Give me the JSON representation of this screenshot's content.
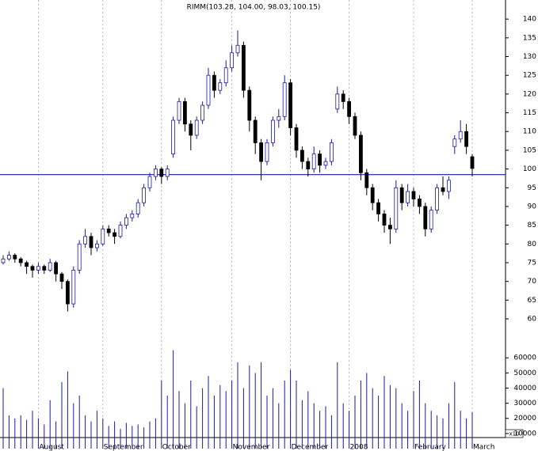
{
  "chart_data": {
    "type": "candlestick",
    "title": "RIMM(103.28, 104.00, 98.03, 100.15)",
    "open": [
      75,
      76,
      77,
      76,
      75,
      74,
      73,
      74,
      73,
      75,
      72,
      70,
      64,
      73,
      80,
      82,
      79,
      80,
      84,
      83,
      82,
      85,
      87,
      88,
      91,
      95,
      98,
      100,
      98,
      104,
      113,
      118,
      112,
      109,
      113,
      117,
      125,
      121,
      123,
      127,
      131,
      133,
      121,
      113,
      107,
      102,
      107,
      113,
      114,
      123,
      111,
      105,
      102,
      100,
      104,
      101,
      102,
      116,
      120,
      118,
      114,
      109,
      99,
      95,
      91,
      88,
      85,
      84,
      95,
      91,
      94,
      92,
      90,
      84,
      89,
      95,
      94,
      106,
      108,
      110,
      103.28
    ],
    "high": [
      77,
      78,
      77.5,
      76.5,
      75.5,
      74.5,
      75,
      74.5,
      76,
      75.5,
      72.5,
      70.5,
      74,
      81,
      84,
      83,
      81,
      85,
      85,
      84,
      86,
      88,
      89,
      92,
      96,
      99,
      101,
      100.5,
      101,
      114,
      119,
      119,
      113,
      114,
      118,
      127,
      126,
      124,
      129,
      133,
      137,
      134,
      122,
      114,
      108,
      108,
      114,
      116,
      125,
      124,
      112,
      106,
      103,
      106,
      105,
      103,
      108,
      122,
      121,
      119,
      115,
      110,
      100,
      96,
      92,
      89,
      87,
      97,
      96,
      96,
      95,
      93,
      91,
      90,
      96,
      98,
      98,
      109,
      113,
      112,
      104
    ],
    "low": [
      74.5,
      75.5,
      75,
      74,
      72,
      71,
      72,
      72,
      72.5,
      70,
      68,
      62,
      63,
      72,
      79,
      77,
      78,
      79.5,
      82,
      80,
      81.5,
      84,
      86,
      87,
      90,
      94,
      97,
      96,
      97,
      103,
      112,
      110,
      105,
      108,
      112,
      116,
      119,
      120,
      122,
      126,
      130,
      119,
      110,
      104,
      97,
      101,
      106,
      111,
      113,
      109,
      103,
      100,
      98,
      99,
      99,
      100,
      101,
      115,
      116,
      112,
      108,
      97,
      93,
      89,
      86,
      83,
      80,
      83,
      89,
      90,
      90,
      88,
      82,
      83,
      88,
      93,
      92,
      104,
      107,
      104,
      98.03
    ],
    "close": [
      76,
      77,
      76,
      75,
      74,
      73,
      74,
      73,
      75,
      72,
      70,
      64,
      73,
      80,
      82,
      79,
      80,
      84,
      83,
      82,
      85,
      87,
      88,
      91,
      95,
      98,
      100,
      98,
      100,
      113,
      118,
      112,
      109,
      113,
      117,
      125,
      121,
      123,
      127,
      131,
      133,
      121,
      113,
      107,
      102,
      107,
      113,
      114,
      123,
      111,
      105,
      102,
      100,
      104,
      101,
      102,
      107,
      120,
      118,
      114,
      109,
      99,
      95,
      91,
      88,
      85,
      84,
      95,
      91,
      94,
      92,
      90,
      84,
      89,
      95,
      94,
      97,
      108,
      110,
      106,
      100.15
    ],
    "volume": [
      40000,
      22000,
      20000,
      22000,
      19000,
      25000,
      20000,
      16000,
      32000,
      18000,
      44000,
      51000,
      30000,
      35000,
      22000,
      18000,
      25000,
      20000,
      15000,
      18000,
      13000,
      17000,
      15000,
      16000,
      14000,
      18000,
      20000,
      45000,
      35000,
      65000,
      38000,
      30000,
      45000,
      28000,
      40000,
      48000,
      35000,
      42000,
      38000,
      45000,
      57000,
      40000,
      55000,
      50000,
      57000,
      35000,
      40000,
      30000,
      45000,
      52000,
      45000,
      32000,
      38000,
      30000,
      25000,
      28000,
      22000,
      57000,
      30000,
      25000,
      35000,
      45000,
      50000,
      40000,
      35000,
      48000,
      42000,
      40000,
      30000,
      25000,
      38000,
      45000,
      30000,
      25000,
      22000,
      20000,
      30000,
      44000,
      25000,
      20000,
      24000
    ],
    "up_color": "#1a1aa6",
    "down_color": "#000000",
    "volume_color": "#1a1aa6",
    "reference_line": 98.5,
    "reference_color": "#1a1aa6",
    "ylim": [
      54.3,
      145.1
    ],
    "yticks": [
      60,
      65,
      70,
      75,
      80,
      85,
      90,
      95,
      100,
      105,
      110,
      115,
      120,
      125,
      130,
      135,
      140
    ],
    "y2lim": [
      0,
      69000
    ],
    "y2ticks": [
      10000,
      20000,
      30000,
      40000,
      50000,
      60000
    ],
    "xticks": [
      {
        "value": 6,
        "label": "August"
      },
      {
        "value": 17,
        "label": "September"
      },
      {
        "value": 27,
        "label": "October"
      },
      {
        "value": 39,
        "label": "November"
      },
      {
        "value": 49,
        "label": "December"
      },
      {
        "value": 59,
        "label": "2008"
      },
      {
        "value": 70,
        "label": "February"
      },
      {
        "value": 80,
        "label": "March"
      }
    ],
    "volume_unit_label": "x10",
    "grid": true
  }
}
